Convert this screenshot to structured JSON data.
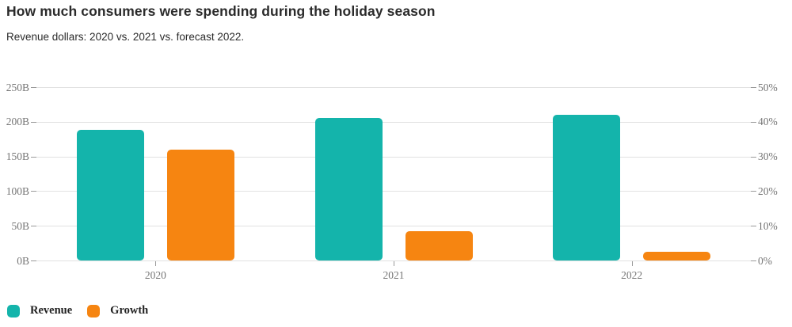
{
  "header": {
    "title": "How much consumers were spending during the holiday season",
    "subtitle": "Revenue dollars: 2020 vs. 2021 vs. forecast 2022."
  },
  "chart_data": {
    "type": "bar",
    "title": "How much consumers were spending during the holiday season",
    "subtitle": "Revenue dollars: 2020 vs. 2021 vs. forecast 2022.",
    "categories": [
      "2020",
      "2021",
      "2022"
    ],
    "series": [
      {
        "name": "Revenue",
        "axis": "left",
        "unit": "B",
        "color": "#14b4ab",
        "values": [
          188,
          205,
          210
        ]
      },
      {
        "name": "Growth",
        "axis": "right",
        "unit": "%",
        "color": "#f68511",
        "values": [
          32,
          8.5,
          2.5
        ]
      }
    ],
    "left_axis": {
      "ticks": [
        "0B",
        "50B",
        "100B",
        "150B",
        "200B",
        "250B"
      ],
      "min": 0,
      "max": 250
    },
    "right_axis": {
      "ticks": [
        "0%",
        "10%",
        "20%",
        "30%",
        "40%",
        "50%"
      ],
      "min": 0,
      "max": 50
    },
    "grid": true,
    "legend_position": "bottom-left"
  },
  "legend": {
    "items": [
      {
        "label": "Revenue",
        "color": "#14b4ab"
      },
      {
        "label": "Growth",
        "color": "#f68511"
      }
    ]
  },
  "colors": {
    "revenue": "#14b4ab",
    "growth": "#f68511",
    "gridline": "#e2e2e2",
    "tick": "#9a9a9a",
    "axis_text": "#767676",
    "title_text": "#2b2b2b"
  }
}
